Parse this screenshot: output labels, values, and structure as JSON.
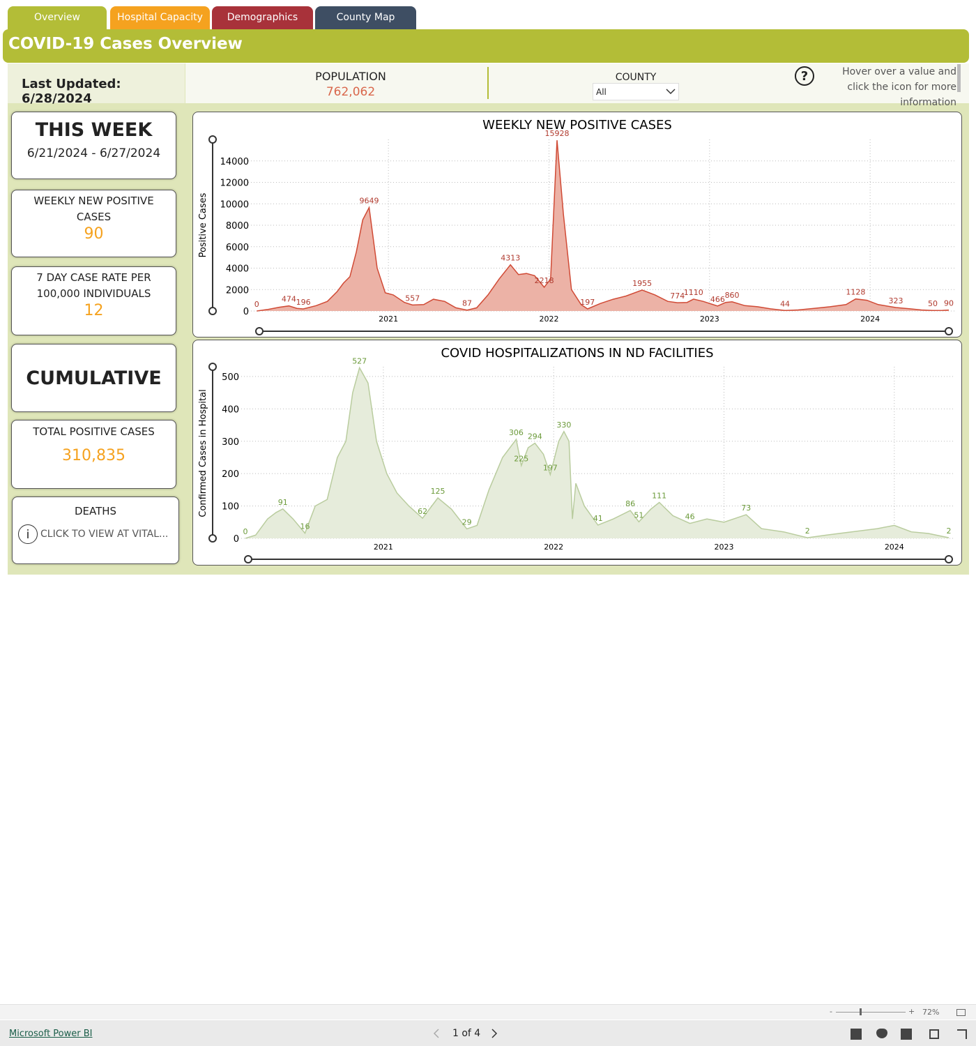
{
  "tabs": [
    "Overview",
    "Hospital Capacity",
    "Demographics",
    "County Map"
  ],
  "header": {
    "title": "COVID-19 Cases Overview",
    "last_updated": "Last Updated: 6/28/2024"
  },
  "population": {
    "label": "POPULATION",
    "value": "762,062"
  },
  "county": {
    "label": "COUNTY",
    "selected": "All"
  },
  "help": {
    "icon": "?",
    "text": "Hover over a value and click the icon for more information"
  },
  "this_week": {
    "title": "THIS WEEK",
    "dates": "6/21/2024 - 6/27/2024",
    "weekly_label": "WEEKLY NEW POSITIVE CASES",
    "weekly_value": 90,
    "rate_label": "7 DAY CASE RATE PER 100,000 INDIVIDUALS",
    "rate_value": 12
  },
  "cumulative": {
    "title": "CUMULATIVE",
    "total_label": "TOTAL POSITIVE CASES",
    "total_value": "310,835",
    "deaths_label": "DEATHS",
    "deaths_icon": "i",
    "deaths_link": "CLICK TO VIEW AT VITAL..."
  },
  "footer": {
    "brand": "Microsoft Power BI",
    "pages": "1 of 4",
    "zoom": "72%",
    "zoom_minus": "-",
    "zoom_plus": "+"
  },
  "chart_data": [
    {
      "type": "area",
      "title": "WEEKLY NEW POSITIVE CASES",
      "y_label": "Positive Cases",
      "color": "#d04a35",
      "fill_color": "#ecb2a6",
      "label_color": "#b03a2e",
      "xlim": [
        2020.17,
        2024.49
      ],
      "xticks": [
        2021,
        2022,
        2023,
        2024
      ],
      "ylim": [
        0,
        16000
      ],
      "yticks": [
        0,
        2000,
        4000,
        6000,
        8000,
        10000,
        12000,
        14000
      ],
      "grid": true,
      "x": [
        2020.18,
        2020.25,
        2020.32,
        2020.38,
        2020.43,
        2020.47,
        2020.55,
        2020.62,
        2020.68,
        2020.72,
        2020.76,
        2020.8,
        2020.84,
        2020.88,
        2020.93,
        2020.98,
        2021.03,
        2021.1,
        2021.15,
        2021.22,
        2021.28,
        2021.35,
        2021.42,
        2021.49,
        2021.55,
        2021.62,
        2021.69,
        2021.76,
        2021.81,
        2021.86,
        2021.91,
        2021.97,
        2022.01,
        2022.05,
        2022.09,
        2022.14,
        2022.2,
        2022.24,
        2022.32,
        2022.4,
        2022.48,
        2022.58,
        2022.66,
        2022.74,
        2022.8,
        2022.86,
        2022.9,
        2022.96,
        2023.05,
        2023.1,
        2023.14,
        2023.22,
        2023.3,
        2023.38,
        2023.47,
        2023.55,
        2023.65,
        2023.75,
        2023.85,
        2023.91,
        2023.98,
        2024.05,
        2024.16,
        2024.25,
        2024.32,
        2024.39,
        2024.45,
        2024.49
      ],
      "values": [
        0,
        150,
        350,
        474,
        250,
        196,
        500,
        900,
        1800,
        2600,
        3200,
        5500,
        8500,
        9649,
        4000,
        1700,
        1500,
        800,
        557,
        600,
        1100,
        900,
        300,
        87,
        300,
        1500,
        3000,
        4313,
        3400,
        3500,
        3300,
        2218,
        3000,
        15928,
        9000,
        2000,
        600,
        197,
        700,
        1100,
        1400,
        1955,
        1500,
        900,
        774,
        800,
        1110,
        900,
        466,
        800,
        860,
        500,
        400,
        200,
        44,
        100,
        250,
        400,
        600,
        1128,
        1000,
        600,
        323,
        200,
        100,
        50,
        60,
        90
      ],
      "value_labels": [
        "0",
        null,
        null,
        "474",
        null,
        "196",
        null,
        null,
        null,
        null,
        null,
        null,
        null,
        "9649",
        null,
        null,
        null,
        null,
        "557",
        null,
        null,
        null,
        null,
        "87",
        null,
        null,
        null,
        "4313",
        null,
        null,
        null,
        "2218",
        null,
        "15928",
        null,
        null,
        null,
        "197",
        null,
        null,
        null,
        "1955",
        null,
        null,
        "774",
        null,
        "1110",
        null,
        "466",
        null,
        "860",
        null,
        null,
        null,
        "44",
        null,
        null,
        null,
        null,
        "1128",
        null,
        null,
        "323",
        null,
        null,
        "50",
        null,
        "90"
      ]
    },
    {
      "type": "area",
      "title": "COVID HOSPITALIZATIONS IN ND FACILITIES",
      "y_label": "Confirmed Cases in Hospital",
      "color": "#b9cc9e",
      "fill_color": "#e6ecdb",
      "label_color": "#6b9a3a",
      "xlim": [
        2020.19,
        2024.32
      ],
      "xticks": [
        2021,
        2022,
        2023,
        2024
      ],
      "ylim": [
        0,
        530
      ],
      "yticks": [
        0,
        100,
        200,
        300,
        400,
        500
      ],
      "grid": true,
      "x": [
        2020.19,
        2020.25,
        2020.32,
        2020.37,
        2020.41,
        2020.47,
        2020.54,
        2020.6,
        2020.67,
        2020.73,
        2020.78,
        2020.82,
        2020.86,
        2020.91,
        2020.96,
        2021.02,
        2021.08,
        2021.15,
        2021.23,
        2021.32,
        2021.4,
        2021.49,
        2021.55,
        2021.62,
        2021.7,
        2021.78,
        2021.81,
        2021.85,
        2021.89,
        2021.94,
        2021.98,
        2022.03,
        2022.06,
        2022.09,
        2022.11,
        2022.13,
        2022.18,
        2022.26,
        2022.35,
        2022.45,
        2022.5,
        2022.57,
        2022.62,
        2022.7,
        2022.8,
        2022.9,
        2023.0,
        2023.13,
        2023.22,
        2023.35,
        2023.49,
        2023.6,
        2023.75,
        2023.9,
        2024.0,
        2024.1,
        2024.2,
        2024.32
      ],
      "values": [
        0,
        10,
        60,
        80,
        91,
        60,
        16,
        100,
        120,
        250,
        300,
        450,
        527,
        480,
        300,
        200,
        140,
        100,
        62,
        125,
        90,
        29,
        40,
        150,
        250,
        306,
        225,
        280,
        294,
        260,
        197,
        300,
        330,
        300,
        60,
        170,
        100,
        41,
        60,
        86,
        51,
        90,
        111,
        70,
        46,
        60,
        50,
        73,
        30,
        20,
        2,
        10,
        20,
        30,
        40,
        20,
        15,
        2
      ],
      "value_labels": [
        "0",
        null,
        null,
        null,
        "91",
        null,
        "16",
        null,
        null,
        null,
        null,
        null,
        "527",
        null,
        null,
        null,
        null,
        null,
        "62",
        "125",
        null,
        "29",
        null,
        null,
        null,
        "306",
        "225",
        null,
        "294",
        null,
        "197",
        null,
        "330",
        null,
        null,
        null,
        null,
        "41",
        null,
        "86",
        "51",
        null,
        "111",
        null,
        "46",
        null,
        null,
        "73",
        null,
        null,
        "2",
        null,
        null,
        null,
        null,
        null,
        null,
        "2"
      ]
    }
  ]
}
